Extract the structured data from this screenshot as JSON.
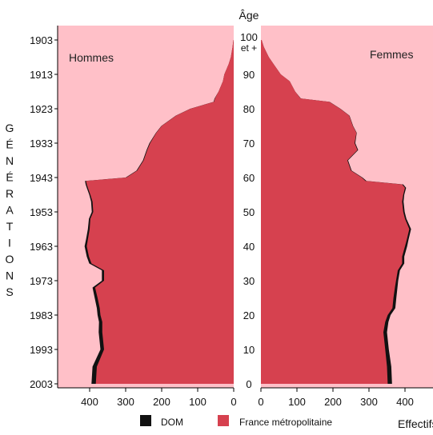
{
  "chart_data": {
    "type": "population_pyramid",
    "age_axis_label": "Âge",
    "left_panel_label": "Hommes",
    "right_panel_label": "Femmes",
    "left_axis_label_letters": [
      "G",
      "É",
      "N",
      "É",
      "R",
      "A",
      "T",
      "I",
      "O",
      "N",
      "S"
    ],
    "age_ticks": [
      {
        "age": 100,
        "label": "100",
        "label2": "et +"
      },
      {
        "age": 90,
        "label": "90"
      },
      {
        "age": 80,
        "label": "80"
      },
      {
        "age": 70,
        "label": "70"
      },
      {
        "age": 60,
        "label": "60"
      },
      {
        "age": 50,
        "label": "50"
      },
      {
        "age": 40,
        "label": "40"
      },
      {
        "age": 30,
        "label": "30"
      },
      {
        "age": 20,
        "label": "20"
      },
      {
        "age": 10,
        "label": "10"
      },
      {
        "age": 0,
        "label": "0"
      }
    ],
    "generation_ticks": [
      {
        "age": 100,
        "label": "1903"
      },
      {
        "age": 90,
        "label": "1913"
      },
      {
        "age": 80,
        "label": "1923"
      },
      {
        "age": 70,
        "label": "1933"
      },
      {
        "age": 60,
        "label": "1943"
      },
      {
        "age": 50,
        "label": "1953"
      },
      {
        "age": 40,
        "label": "1963"
      },
      {
        "age": 30,
        "label": "1973"
      },
      {
        "age": 20,
        "label": "1983"
      },
      {
        "age": 10,
        "label": "1993"
      },
      {
        "age": 0,
        "label": "2003"
      }
    ],
    "x_ticks_left": [
      400,
      300,
      200,
      100,
      0
    ],
    "x_ticks_right": [
      0,
      100,
      200,
      300,
      400
    ],
    "x_max": 480,
    "x_axis_label": "Effectifs",
    "legend": [
      {
        "key": "dom",
        "label": "DOM",
        "color": "#111111"
      },
      {
        "key": "metro",
        "label": "France métropolitaine",
        "color": "#d6414f"
      }
    ],
    "colors": {
      "background": "#ffc0c8",
      "metro": "#d6414f",
      "dom": "#111111"
    },
    "ages": [
      0,
      5,
      10,
      15,
      18,
      20,
      22,
      25,
      28,
      30,
      33,
      35,
      37,
      40,
      42,
      45,
      48,
      50,
      53,
      55,
      57,
      58,
      59,
      60,
      62,
      65,
      68,
      70,
      73,
      75,
      78,
      80,
      82,
      83,
      85,
      88,
      90,
      93,
      95,
      98,
      100
    ],
    "men_metro": [
      383,
      380,
      360,
      365,
      365,
      370,
      372,
      378,
      385,
      360,
      360,
      395,
      402,
      408,
      405,
      400,
      398,
      390,
      392,
      398,
      405,
      408,
      410,
      298,
      268,
      250,
      240,
      232,
      215,
      200,
      160,
      120,
      55,
      52,
      42,
      30,
      26,
      14,
      8,
      3,
      1
    ],
    "men_dom": [
      12,
      12,
      10,
      10,
      9,
      8,
      8,
      8,
      7,
      6,
      6,
      6,
      6,
      6,
      5,
      5,
      4,
      4,
      4,
      3,
      3,
      3,
      3,
      2,
      2,
      2,
      2,
      2,
      1,
      1,
      1,
      1,
      1,
      1,
      0,
      0,
      0,
      0,
      0,
      0,
      0
    ],
    "women_metro": [
      352,
      350,
      345,
      340,
      345,
      352,
      365,
      368,
      372,
      375,
      380,
      392,
      392,
      400,
      405,
      412,
      400,
      395,
      392,
      395,
      400,
      392,
      290,
      280,
      250,
      240,
      268,
      260,
      265,
      255,
      245,
      220,
      190,
      110,
      95,
      80,
      55,
      35,
      22,
      8,
      2
    ],
    "women_dom": [
      12,
      12,
      10,
      10,
      9,
      8,
      8,
      8,
      7,
      6,
      6,
      6,
      6,
      6,
      5,
      5,
      4,
      4,
      4,
      3,
      3,
      3,
      3,
      2,
      2,
      2,
      2,
      2,
      1,
      1,
      1,
      1,
      1,
      1,
      0,
      0,
      0,
      0,
      0,
      0,
      0
    ]
  }
}
